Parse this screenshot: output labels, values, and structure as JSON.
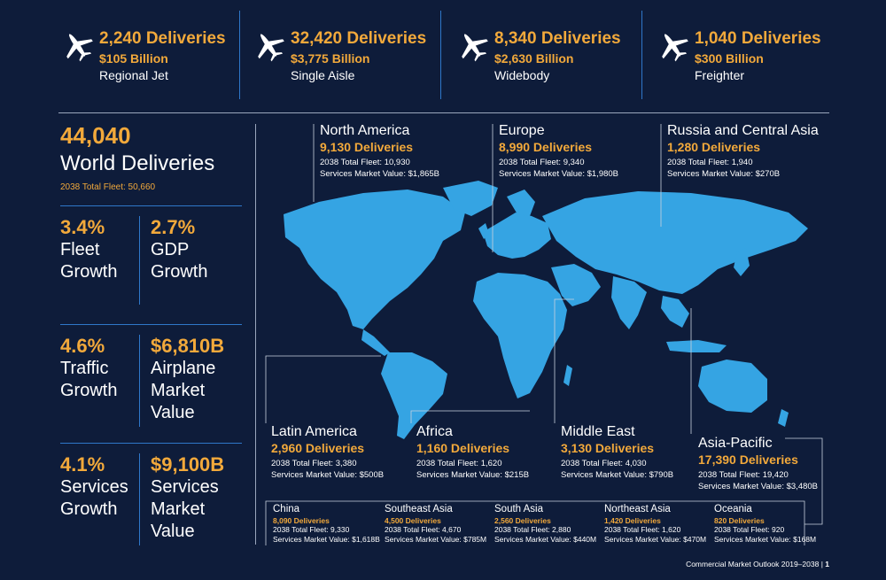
{
  "categories": [
    {
      "deliveries": "2,240 Deliveries",
      "value": "$105 Billion",
      "name": "Regional Jet"
    },
    {
      "deliveries": "32,420 Deliveries",
      "value": "$3,775 Billion",
      "name": "Single Aisle"
    },
    {
      "deliveries": "8,340 Deliveries",
      "value": "$2,630 Billion",
      "name": "Widebody"
    },
    {
      "deliveries": "1,040 Deliveries",
      "value": "$300 Billion",
      "name": "Freighter"
    }
  ],
  "world": {
    "value": "44,040",
    "label": "World Deliveries",
    "fleet": "2038 Total Fleet: 50,660"
  },
  "stats": [
    {
      "value": "3.4%",
      "label_1": "Fleet",
      "label_2": "Growth",
      "label_3": ""
    },
    {
      "value": "2.7%",
      "label_1": "GDP",
      "label_2": "Growth",
      "label_3": ""
    },
    {
      "value": "4.6%",
      "label_1": "Traffic",
      "label_2": "Growth",
      "label_3": ""
    },
    {
      "value": "$6,810B",
      "label_1": "Airplane",
      "label_2": "Market",
      "label_3": "Value"
    },
    {
      "value": "4.1%",
      "label_1": "Services",
      "label_2": "Growth",
      "label_3": ""
    },
    {
      "value": "$9,100B",
      "label_1": "Services",
      "label_2": "Market",
      "label_3": "Value"
    }
  ],
  "regions": {
    "north_america": {
      "name": "North America",
      "deliveries": "9,130 Deliveries",
      "fleet": "2038 Total Fleet: 10,930",
      "services": "Services Market Value: $1,865B"
    },
    "europe": {
      "name": "Europe",
      "deliveries": "8,990 Deliveries",
      "fleet": "2038 Total Fleet: 9,340",
      "services": "Services Market Value: $1,980B"
    },
    "russia": {
      "name": "Russia and Central Asia",
      "deliveries": "1,280 Deliveries",
      "fleet": "2038 Total Fleet: 1,940",
      "services": "Services Market Value: $270B"
    },
    "latin_america": {
      "name": "Latin America",
      "deliveries": "2,960 Deliveries",
      "fleet": "2038 Total Fleet: 3,380",
      "services": "Services Market Value: $500B"
    },
    "africa": {
      "name": "Africa",
      "deliveries": "1,160 Deliveries",
      "fleet": "2038 Total Fleet: 1,620",
      "services": "Services Market Value: $215B"
    },
    "middle_east": {
      "name": "Middle East",
      "deliveries": "3,130 Deliveries",
      "fleet": "2038 Total Fleet: 4,030",
      "services": "Services Market Value: $790B"
    },
    "asia_pacific": {
      "name": "Asia-Pacific",
      "deliveries": "17,390 Deliveries",
      "fleet": "2038 Total Fleet: 19,420",
      "services": "Services Market Value: $3,480B"
    }
  },
  "subregions": [
    {
      "name": "China",
      "deliveries": "8,090 Deliveries",
      "fleet": "2038 Total Fleet: 9,330",
      "services": "Services Market Value: $1,618B"
    },
    {
      "name": "Southeast Asia",
      "deliveries": "4,500 Deliveries",
      "fleet": "2038 Total Fleet: 4,670",
      "services": "Services Market Value: $785M"
    },
    {
      "name": "South Asia",
      "deliveries": "2,560 Deliveries",
      "fleet": "2038 Total Fleet: 2,880",
      "services": "Services Market Value: $440M"
    },
    {
      "name": "Northeast Asia",
      "deliveries": "1,420 Deliveries",
      "fleet": "2038 Total Fleet: 1,620",
      "services": "Services Market Value: $470M"
    },
    {
      "name": "Oceania",
      "deliveries": "820 Deliveries",
      "fleet": "2038 Total Fleet: 920",
      "services": "Services Market Value: $168M"
    }
  ],
  "footer": {
    "title": "Commercial Market Outlook 2019–2038",
    "page": "1"
  },
  "colors": {
    "background": "#0e1c3a",
    "accent": "#f2a93b",
    "map": "#35a4e3",
    "divider": "#2f77c9"
  },
  "icons": [
    "airplane-icon"
  ]
}
